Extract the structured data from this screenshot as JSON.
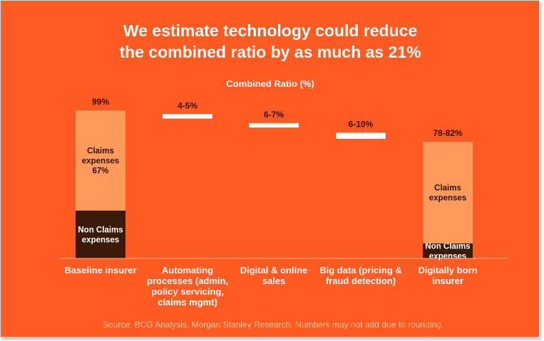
{
  "colors": {
    "background": "#FF5A21",
    "claims": "#FF9A5C",
    "non_claims": "#3B1A0A",
    "reduction": "#FFFFFF",
    "axis": "#FFB08A"
  },
  "chart_data": {
    "type": "bar",
    "subtype": "waterfall",
    "title": "We estimate technology could reduce the combined ratio by as much as 21%",
    "title_lines": [
      "We estimate technology could reduce",
      "the combined ratio by as much as 21%"
    ],
    "subtitle": "Combined Ratio (%)",
    "categories": [
      [
        "Baseline insurer"
      ],
      [
        "Automating",
        "processes (admin,",
        "policy servicing,",
        "claims mgmt)"
      ],
      [
        "Digital & online",
        "sales"
      ],
      [
        "Big data (pricing &",
        "fraud detection)"
      ],
      [
        "Digitally born",
        "insurer"
      ]
    ],
    "ylim": [
      0,
      102
    ],
    "bars": [
      {
        "kind": "stack",
        "value_label": "99%",
        "segments": [
          {
            "name": "Non Claims expenses",
            "label_lines": [
              "Non Claims",
              "expenses"
            ],
            "from": 0,
            "to": 32,
            "color_key": "non_claims",
            "text_color": "#FFFFFF"
          },
          {
            "name": "Claims expenses",
            "label_lines": [
              "Claims",
              "expenses",
              "67%"
            ],
            "from": 32,
            "to": 99,
            "color_key": "claims",
            "text_color": "#2B1205"
          }
        ]
      },
      {
        "kind": "float",
        "value_label": "4-5%",
        "from": 93.5,
        "to": 96.5,
        "color_key": "reduction"
      },
      {
        "kind": "float",
        "value_label": "6-7%",
        "from": 87.5,
        "to": 90.5,
        "color_key": "reduction"
      },
      {
        "kind": "float",
        "value_label": "6-10%",
        "from": 80.0,
        "to": 84.0,
        "color_key": "reduction"
      },
      {
        "kind": "stack",
        "value_label": "78-82%",
        "segments": [
          {
            "name": "Non Claims expenses",
            "label_lines": [
              "Non Claims",
              "expenses"
            ],
            "from": 0,
            "to": 10,
            "color_key": "non_claims",
            "text_color": "#FFFFFF"
          },
          {
            "name": "Claims expenses",
            "label_lines": [
              "Claims",
              "expenses"
            ],
            "from": 10,
            "to": 78,
            "color_key": "claims",
            "text_color": "#2B1205"
          }
        ]
      }
    ],
    "grid": false,
    "legend": "none"
  },
  "source": "Source: BCG Analysis, Morgan Stanley Research. Numbers may not add due to rounding."
}
